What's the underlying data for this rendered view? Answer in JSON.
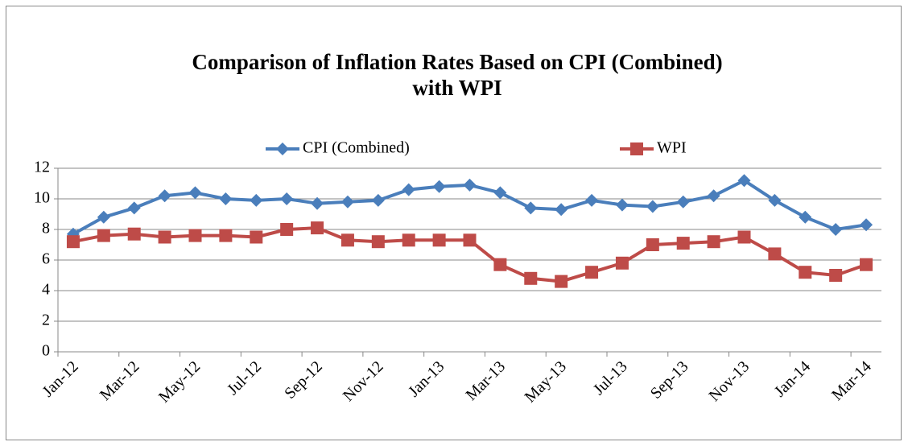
{
  "chart_data": {
    "type": "line",
    "title": "Comparison of Inflation Rates Based on CPI (Combined)",
    "subtitle": "with WPI",
    "categories": [
      "Jan-12",
      null,
      "Mar-12",
      null,
      "May-12",
      null,
      "Jul-12",
      null,
      "Sep-12",
      null,
      "Nov-12",
      null,
      "Jan-13",
      null,
      "Mar-13",
      null,
      "May-13",
      null,
      "Jul-13",
      null,
      "Sep-13",
      null,
      "Nov-13",
      null,
      "Jan-14",
      null,
      "Mar-14"
    ],
    "series": [
      {
        "name": "CPI (Combined)",
        "color": "#4a7ebb",
        "marker": "diamond",
        "values": [
          7.7,
          8.8,
          9.4,
          10.2,
          10.4,
          10.0,
          9.9,
          10.0,
          9.7,
          9.8,
          9.9,
          10.6,
          10.8,
          10.9,
          10.4,
          9.4,
          9.3,
          9.9,
          9.6,
          9.5,
          9.8,
          10.2,
          11.2,
          9.9,
          8.8,
          8.0,
          8.3
        ]
      },
      {
        "name": "WPI",
        "color": "#be4b48",
        "marker": "square",
        "values": [
          7.2,
          7.6,
          7.7,
          7.5,
          7.6,
          7.6,
          7.5,
          8.0,
          8.1,
          7.3,
          7.2,
          7.3,
          7.3,
          7.3,
          5.7,
          4.8,
          4.6,
          5.2,
          5.8,
          7.0,
          7.1,
          7.2,
          7.5,
          6.4,
          5.2,
          5.0,
          5.7
        ]
      }
    ],
    "ylim": [
      0,
      12
    ],
    "yticks": [
      0,
      2,
      4,
      6,
      8,
      10,
      12
    ],
    "grid": true,
    "legend": "top"
  }
}
